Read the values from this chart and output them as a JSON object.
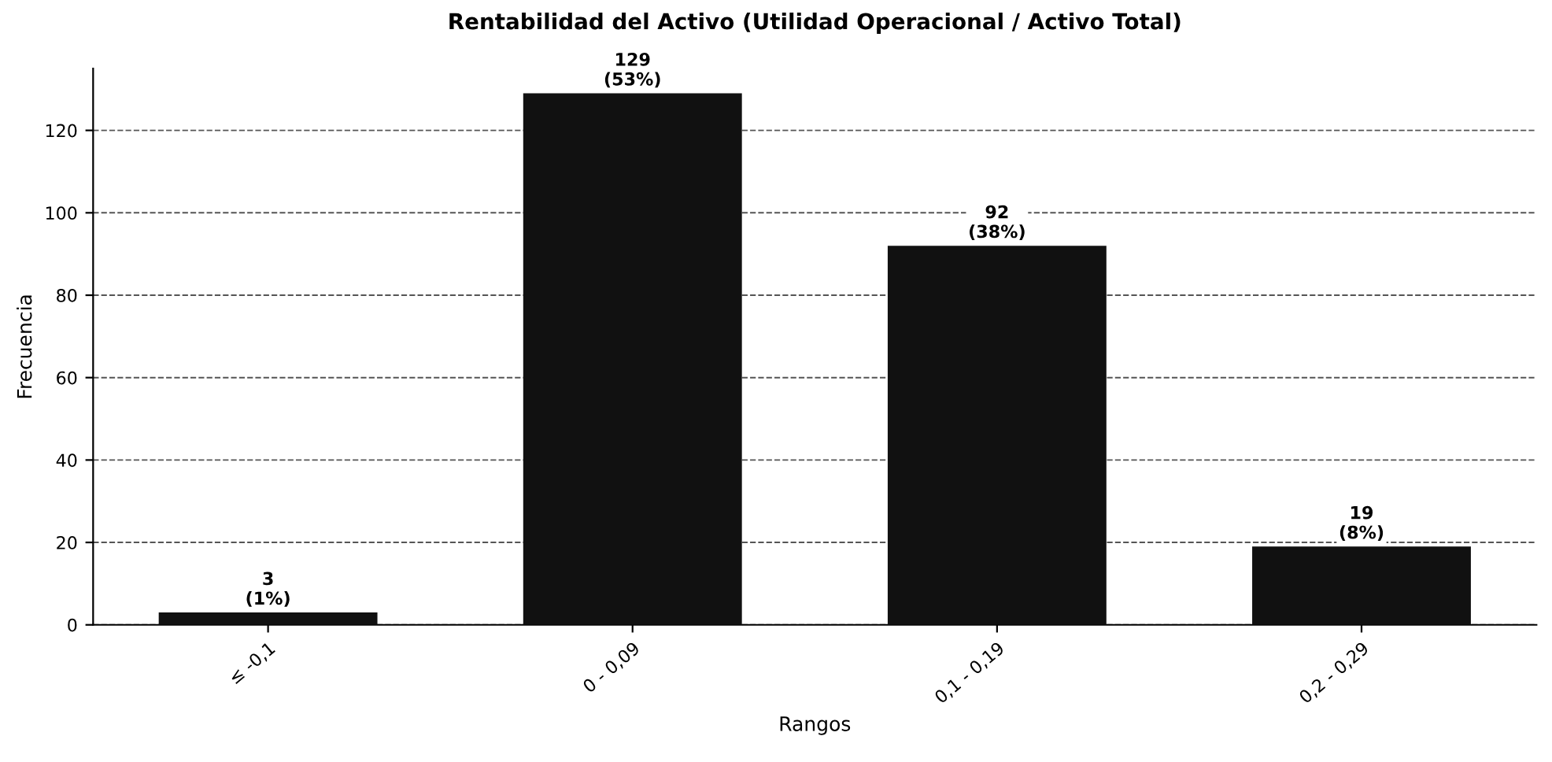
{
  "chart_data": {
    "type": "bar",
    "title": "Rentabilidad del Activo (Utilidad Operacional / Activo Total)",
    "xlabel": "Rangos",
    "ylabel": "Frecuencia",
    "categories": [
      "≤ -0,1",
      "0 - 0,09",
      "0,1 - 0,19",
      "0,2 - 0,29"
    ],
    "values": [
      3,
      129,
      92,
      19
    ],
    "value_labels": [
      "3\n(1%)",
      "129\n(53%)",
      "92\n(38%)",
      "19\n(8%)"
    ],
    "color": "#111111",
    "ylim": [
      0,
      135
    ],
    "yticks": [
      0,
      20,
      40,
      60,
      80,
      100,
      120
    ],
    "grid": "y",
    "line_style": "dashed"
  }
}
